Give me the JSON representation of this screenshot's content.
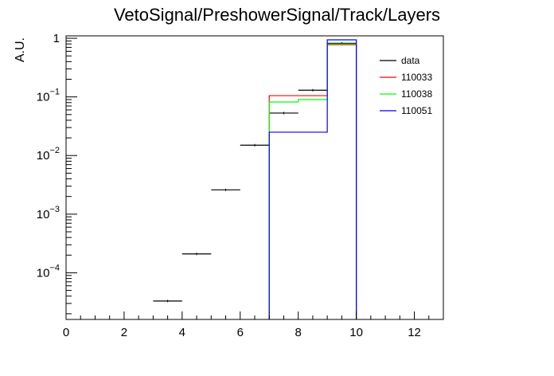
{
  "chart_data": {
    "type": "line",
    "title": "VetoSignal/PreshowerSignal/Track/Layers",
    "xlabel": "",
    "ylabel": "A.U.",
    "xlim": [
      0,
      13
    ],
    "ylim": [
      1.6e-05,
      1.1
    ],
    "yscale": "log",
    "x_ticks": [
      0,
      2,
      4,
      6,
      8,
      10,
      12
    ],
    "y_ticks": [
      {
        "value": 1,
        "base": "1",
        "exp": ""
      },
      {
        "value": 0.1,
        "base": "10",
        "exp": "−1"
      },
      {
        "value": 0.01,
        "base": "10",
        "exp": "−2"
      },
      {
        "value": 0.001,
        "base": "10",
        "exp": "−3"
      },
      {
        "value": 0.0001,
        "base": "10",
        "exp": "−4"
      }
    ],
    "legend_position": "top-right",
    "bin_edges": [
      0,
      1,
      2,
      3,
      4,
      5,
      6,
      7,
      8,
      9,
      10,
      11,
      12,
      13
    ],
    "series": [
      {
        "name": "data",
        "style": "points",
        "color": "#000000",
        "values": [
          0,
          0,
          0,
          3.3e-05,
          0.00021,
          0.0026,
          0.015,
          0.053,
          0.13,
          0.82,
          0,
          0,
          0
        ]
      },
      {
        "name": "110033",
        "style": "hist",
        "color": "#ff0000",
        "values": [
          0,
          0,
          0,
          0,
          0,
          0,
          0,
          0.105,
          0.105,
          0.78,
          0,
          0,
          0
        ]
      },
      {
        "name": "110038",
        "style": "hist",
        "color": "#00ff00",
        "values": [
          0,
          0,
          0,
          0,
          0,
          0,
          0,
          0.082,
          0.09,
          0.8,
          0,
          0,
          0
        ]
      },
      {
        "name": "110051",
        "style": "hist",
        "color": "#0000ff",
        "values": [
          0,
          0,
          0,
          0,
          0,
          0,
          0,
          0.025,
          0.025,
          0.94,
          0,
          0,
          0
        ]
      }
    ]
  }
}
